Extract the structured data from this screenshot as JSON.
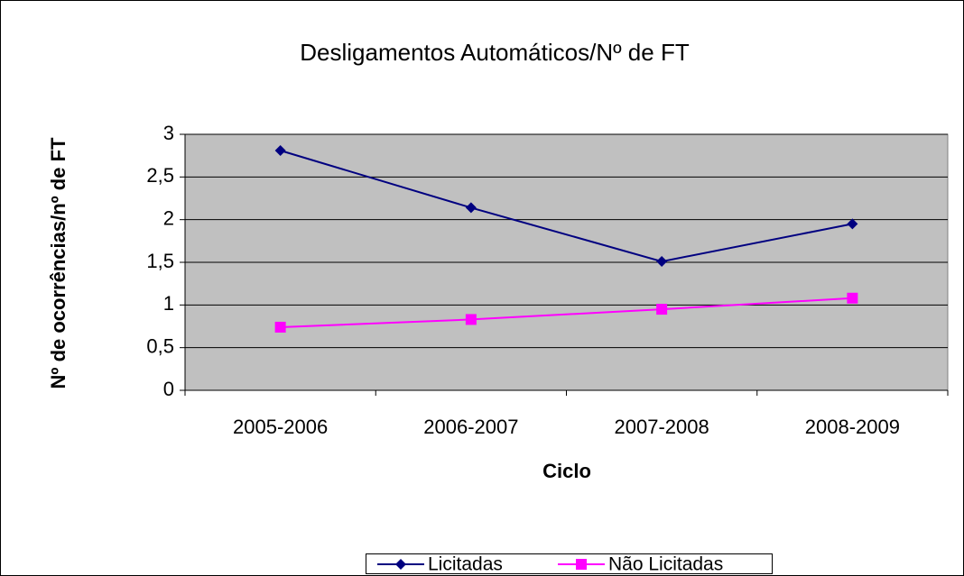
{
  "chart_data": {
    "type": "line",
    "title": "Desligamentos Automáticos/Nº de FT",
    "x_label": "Ciclo",
    "y_label": "Nº de ocorrências/nº de FT",
    "categories": [
      "2005-2006",
      "2006-2007",
      "2007-2008",
      "2008-2009"
    ],
    "series": [
      {
        "name": "Licitadas",
        "color": "#000080",
        "marker": "diamond",
        "values": [
          2.81,
          2.14,
          1.51,
          1.95
        ]
      },
      {
        "name": "Não Licitadas",
        "color": "#ff00ff",
        "marker": "square",
        "values": [
          0.74,
          0.83,
          0.95,
          1.08
        ]
      }
    ],
    "ylim": [
      0,
      3
    ],
    "yticks": [
      0,
      {
        "value": 0.5,
        "label": "0,5"
      },
      1,
      {
        "value": 1.5,
        "label": "1,5"
      },
      2,
      {
        "value": 2.5,
        "label": "2,5"
      },
      3
    ],
    "grid": true,
    "legend": "bottom",
    "plot_background": "#c0c0c0"
  }
}
